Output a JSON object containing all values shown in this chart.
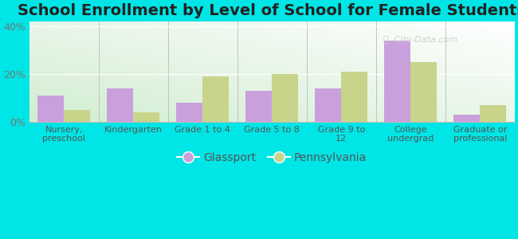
{
  "title": "School Enrollment by Level of School for Female Students",
  "categories": [
    "Nursery,\npreschool",
    "Kindergarten",
    "Grade 1 to 4",
    "Grade 5 to 8",
    "Grade 9 to\n12",
    "College\nundergrad",
    "Graduate or\nprofessional"
  ],
  "glassport": [
    11,
    14,
    8,
    13,
    14,
    34,
    3
  ],
  "pennsylvania": [
    5,
    4,
    19,
    20,
    21,
    25,
    7
  ],
  "glassport_color": "#c9a0dc",
  "pennsylvania_color": "#c8d48a",
  "background_color": "#00e5e5",
  "yticks": [
    0,
    20,
    40
  ],
  "ytick_labels": [
    "0%",
    "20%",
    "40%"
  ],
  "ylim": [
    0,
    42
  ],
  "legend_labels": [
    "Glassport",
    "Pennsylvania"
  ],
  "title_fontsize": 14,
  "bar_width": 0.38
}
